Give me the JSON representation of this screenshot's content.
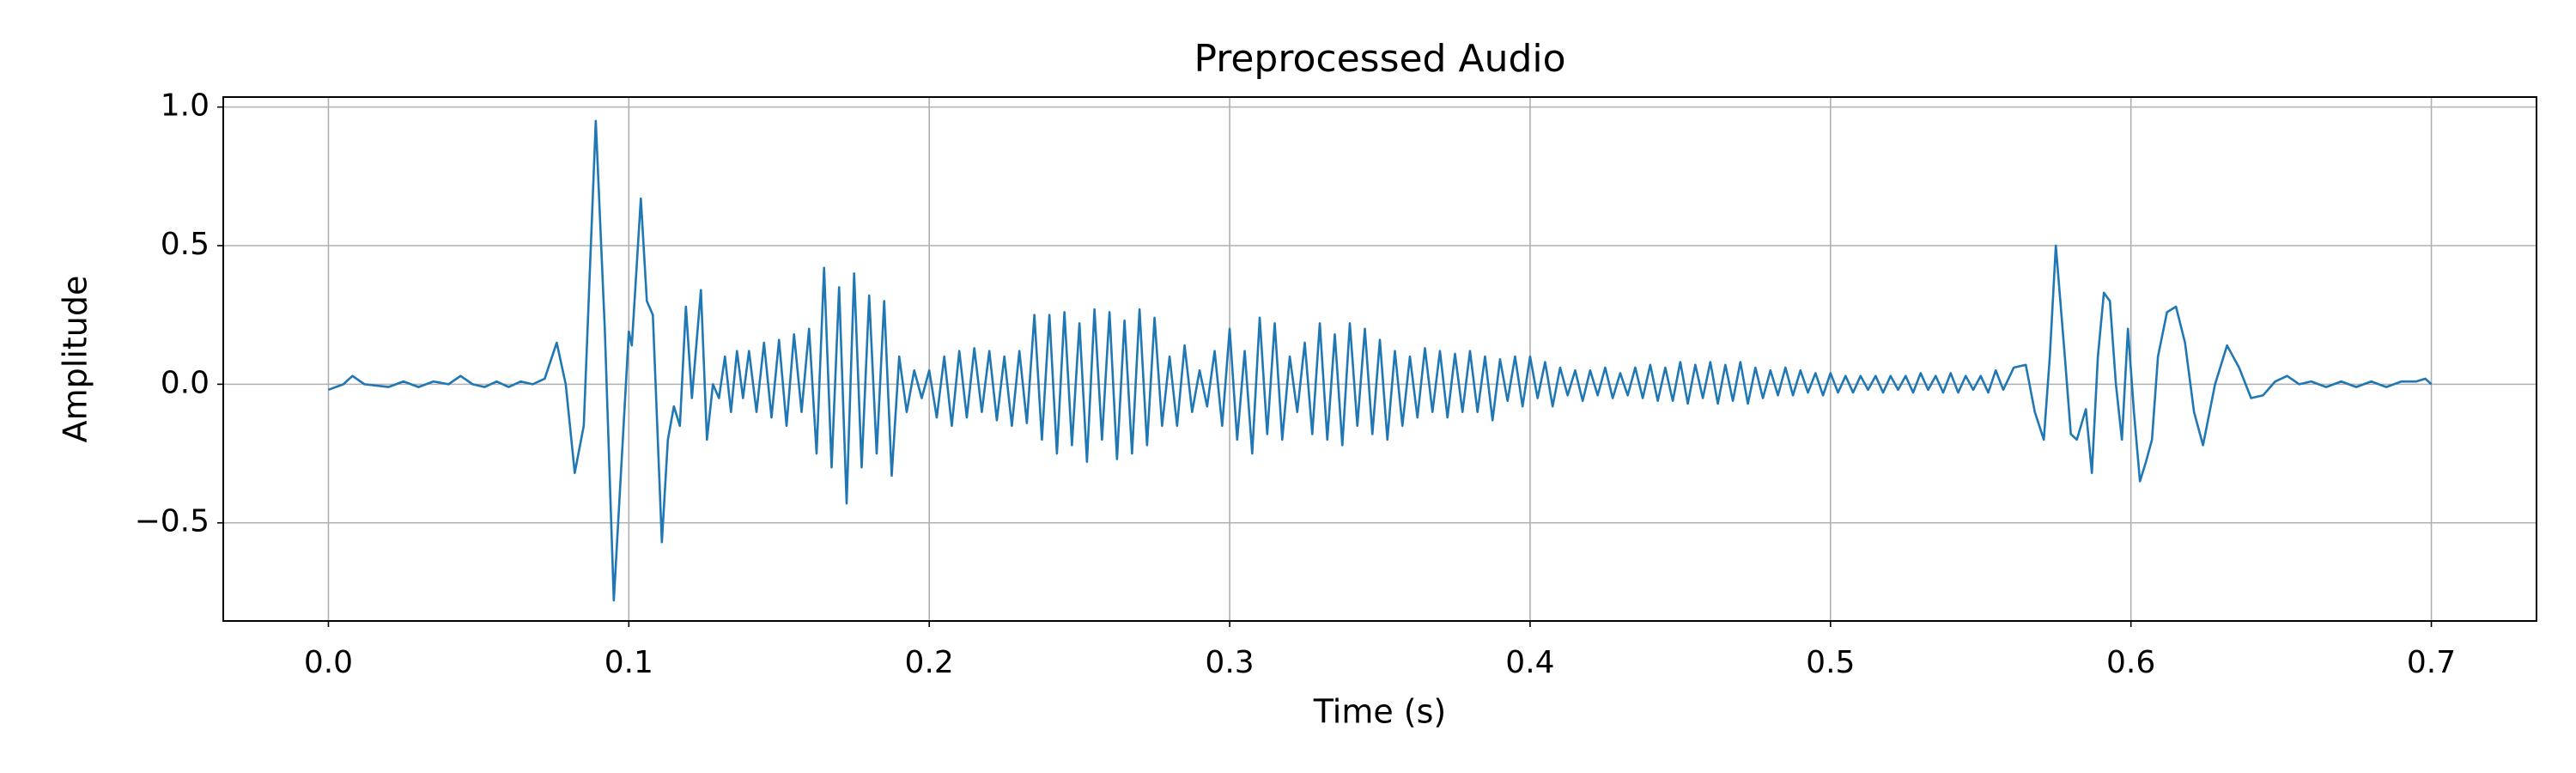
{
  "chart_data": {
    "type": "line",
    "title": "Preprocessed Audio",
    "x_label": "Time (s)",
    "y_label": "Amplitude",
    "grid": true,
    "xlim": [
      -0.035,
      0.735
    ],
    "ylim": [
      -0.854,
      1.036
    ],
    "xticks": [
      {
        "value": 0,
        "label": "0.0"
      },
      0.1,
      0.2,
      0.3,
      0.4,
      0.5,
      0.6,
      0.7
    ],
    "yticks": [
      {
        "value": -0.5,
        "label": "−0.5"
      },
      {
        "value": 0,
        "label": "0.0"
      },
      0.5,
      {
        "value": 1,
        "label": "1.0"
      }
    ],
    "series": [
      {
        "name": "Preprocessed Audio",
        "color": "#1f77b4",
        "x": [
          0,
          0.005,
          0.008,
          0.012,
          0.02,
          0.025,
          0.03,
          0.035,
          0.04,
          0.044,
          0.048,
          0.052,
          0.056,
          0.06,
          0.064,
          0.068,
          0.072,
          0.076,
          0.079,
          0.082,
          0.085,
          0.089,
          0.092,
          0.095,
          0.098,
          0.1,
          0.101,
          0.104,
          0.106,
          0.108,
          0.111,
          0.113,
          0.115,
          0.117,
          0.119,
          0.121,
          0.124,
          0.126,
          0.128,
          0.13,
          0.132,
          0.134,
          0.136,
          0.138,
          0.14,
          0.1425,
          0.145,
          0.1475,
          0.15,
          0.1525,
          0.155,
          0.1575,
          0.16,
          0.1625,
          0.165,
          0.1675,
          0.17,
          0.1725,
          0.175,
          0.1775,
          0.18,
          0.1825,
          0.185,
          0.1875,
          0.19,
          0.1925,
          0.195,
          0.1975,
          0.2,
          0.2025,
          0.205,
          0.2075,
          0.21,
          0.2125,
          0.215,
          0.2175,
          0.22,
          0.2225,
          0.225,
          0.2275,
          0.23,
          0.2325,
          0.235,
          0.2375,
          0.24,
          0.2425,
          0.245,
          0.2475,
          0.25,
          0.2525,
          0.255,
          0.2575,
          0.26,
          0.2625,
          0.265,
          0.2675,
          0.27,
          0.2725,
          0.275,
          0.2775,
          0.28,
          0.2825,
          0.285,
          0.2875,
          0.29,
          0.2925,
          0.295,
          0.2975,
          0.3,
          0.3025,
          0.305,
          0.3075,
          0.31,
          0.3125,
          0.315,
          0.3175,
          0.32,
          0.3225,
          0.325,
          0.3275,
          0.33,
          0.3325,
          0.335,
          0.3375,
          0.34,
          0.3425,
          0.345,
          0.3475,
          0.35,
          0.3525,
          0.355,
          0.3575,
          0.36,
          0.3625,
          0.365,
          0.3675,
          0.37,
          0.3725,
          0.375,
          0.3775,
          0.38,
          0.3825,
          0.385,
          0.3875,
          0.39,
          0.3925,
          0.395,
          0.3975,
          0.4,
          0.4025,
          0.405,
          0.4075,
          0.41,
          0.4125,
          0.415,
          0.4175,
          0.42,
          0.4225,
          0.425,
          0.4275,
          0.43,
          0.4325,
          0.435,
          0.4375,
          0.44,
          0.4425,
          0.445,
          0.4475,
          0.45,
          0.4525,
          0.455,
          0.4575,
          0.46,
          0.4625,
          0.465,
          0.4675,
          0.47,
          0.4725,
          0.475,
          0.4775,
          0.48,
          0.4825,
          0.485,
          0.4875,
          0.49,
          0.4925,
          0.495,
          0.4975,
          0.5,
          0.5025,
          0.505,
          0.5075,
          0.51,
          0.5125,
          0.515,
          0.5175,
          0.52,
          0.5225,
          0.525,
          0.5275,
          0.53,
          0.5325,
          0.535,
          0.5375,
          0.54,
          0.5425,
          0.545,
          0.5475,
          0.55,
          0.5525,
          0.555,
          0.5575,
          0.561,
          0.565,
          0.568,
          0.571,
          0.573,
          0.575,
          0.578,
          0.58,
          0.582,
          0.585,
          0.587,
          0.589,
          0.591,
          0.593,
          0.595,
          0.597,
          0.599,
          0.601,
          0.603,
          0.605,
          0.607,
          0.609,
          0.612,
          0.615,
          0.618,
          0.621,
          0.624,
          0.628,
          0.632,
          0.636,
          0.64,
          0.644,
          0.648,
          0.652,
          0.656,
          0.66,
          0.665,
          0.67,
          0.675,
          0.68,
          0.685,
          0.69,
          0.695,
          0.698,
          0.7
        ],
        "values": [
          -0.02,
          0.0,
          0.03,
          0.0,
          -0.01,
          0.01,
          -0.01,
          0.01,
          0.0,
          0.03,
          0.0,
          -0.01,
          0.01,
          -0.01,
          0.01,
          0.0,
          0.02,
          0.15,
          0.0,
          -0.32,
          -0.15,
          0.95,
          0.2,
          -0.78,
          -0.2,
          0.19,
          0.14,
          0.67,
          0.3,
          0.25,
          -0.57,
          -0.2,
          -0.08,
          -0.15,
          0.28,
          -0.05,
          0.34,
          -0.2,
          0.0,
          -0.05,
          0.1,
          -0.1,
          0.12,
          -0.05,
          0.12,
          -0.1,
          0.15,
          -0.12,
          0.16,
          -0.15,
          0.18,
          -0.1,
          0.2,
          -0.25,
          0.42,
          -0.3,
          0.35,
          -0.43,
          0.4,
          -0.3,
          0.32,
          -0.25,
          0.3,
          -0.33,
          0.1,
          -0.1,
          0.05,
          -0.05,
          0.05,
          -0.12,
          0.1,
          -0.15,
          0.12,
          -0.12,
          0.13,
          -0.1,
          0.12,
          -0.13,
          0.1,
          -0.15,
          0.12,
          -0.14,
          0.25,
          -0.2,
          0.25,
          -0.25,
          0.26,
          -0.22,
          0.22,
          -0.28,
          0.27,
          -0.2,
          0.26,
          -0.27,
          0.23,
          -0.25,
          0.27,
          -0.22,
          0.24,
          -0.15,
          0.1,
          -0.15,
          0.14,
          -0.1,
          0.05,
          -0.08,
          0.12,
          -0.15,
          0.2,
          -0.2,
          0.12,
          -0.25,
          0.24,
          -0.18,
          0.22,
          -0.2,
          0.1,
          -0.1,
          0.15,
          -0.18,
          0.22,
          -0.2,
          0.18,
          -0.22,
          0.22,
          -0.15,
          0.2,
          -0.18,
          0.16,
          -0.2,
          0.12,
          -0.15,
          0.1,
          -0.12,
          0.13,
          -0.1,
          0.12,
          -0.12,
          0.11,
          -0.1,
          0.12,
          -0.1,
          0.1,
          -0.13,
          0.09,
          -0.06,
          0.1,
          -0.08,
          0.1,
          -0.05,
          0.08,
          -0.08,
          0.06,
          -0.04,
          0.05,
          -0.06,
          0.05,
          -0.04,
          0.06,
          -0.05,
          0.04,
          -0.04,
          0.06,
          -0.05,
          0.07,
          -0.06,
          0.06,
          -0.06,
          0.08,
          -0.07,
          0.07,
          -0.05,
          0.08,
          -0.07,
          0.07,
          -0.06,
          0.08,
          -0.07,
          0.06,
          -0.05,
          0.05,
          -0.04,
          0.06,
          -0.04,
          0.05,
          -0.03,
          0.04,
          -0.04,
          0.04,
          -0.03,
          0.03,
          -0.03,
          0.03,
          -0.02,
          0.03,
          -0.03,
          0.03,
          -0.02,
          0.03,
          -0.03,
          0.04,
          -0.02,
          0.03,
          -0.03,
          0.04,
          -0.03,
          0.03,
          -0.02,
          0.03,
          -0.03,
          0.05,
          -0.02,
          0.06,
          0.07,
          -0.1,
          -0.2,
          0.1,
          0.5,
          0.1,
          -0.18,
          -0.2,
          -0.09,
          -0.32,
          0.1,
          0.33,
          0.3,
          0.0,
          -0.2,
          0.2,
          -0.1,
          -0.35,
          -0.28,
          -0.2,
          0.1,
          0.26,
          0.28,
          0.15,
          -0.1,
          -0.22,
          0.0,
          0.14,
          0.06,
          -0.05,
          -0.04,
          0.01,
          0.03,
          0.0,
          0.01,
          -0.01,
          0.01,
          -0.01,
          0.01,
          -0.01,
          0.01,
          0.01,
          0.02,
          0.0
        ]
      }
    ]
  }
}
